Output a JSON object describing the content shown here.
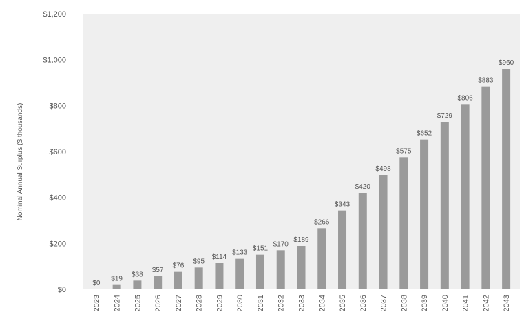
{
  "chart_data": {
    "type": "bar",
    "title": "",
    "xlabel": "",
    "ylabel": "Nominal Annual Surplus ($ thousands)",
    "ylim": [
      0,
      1200
    ],
    "yticks": [
      0,
      200,
      400,
      600,
      800,
      1000,
      1200
    ],
    "ytick_labels": [
      "$0",
      "$200",
      "$400",
      "$600",
      "$800",
      "$1,000",
      "$1,200"
    ],
    "categories": [
      "2023",
      "2024",
      "2025",
      "2026",
      "2027",
      "2028",
      "2029",
      "2030",
      "2031",
      "2032",
      "2033",
      "2034",
      "2035",
      "2036",
      "2037",
      "2038",
      "2039",
      "2040",
      "2041",
      "2042",
      "2043"
    ],
    "values": [
      0,
      19,
      38,
      57,
      76,
      95,
      114,
      133,
      151,
      170,
      189,
      266,
      343,
      420,
      498,
      575,
      652,
      729,
      806,
      883,
      960
    ],
    "data_labels": [
      "$0",
      "$19",
      "$38",
      "$57",
      "$76",
      "$95",
      "$114",
      "$133",
      "$151",
      "$170",
      "$189",
      "$266",
      "$343",
      "$420",
      "$498",
      "$575",
      "$652",
      "$729",
      "$806",
      "$883",
      "$960"
    ],
    "grid": false,
    "legend": "none",
    "colors": {
      "bar": "#9a9a9a",
      "plot_bg": "#efefef",
      "text": "#555555"
    }
  }
}
